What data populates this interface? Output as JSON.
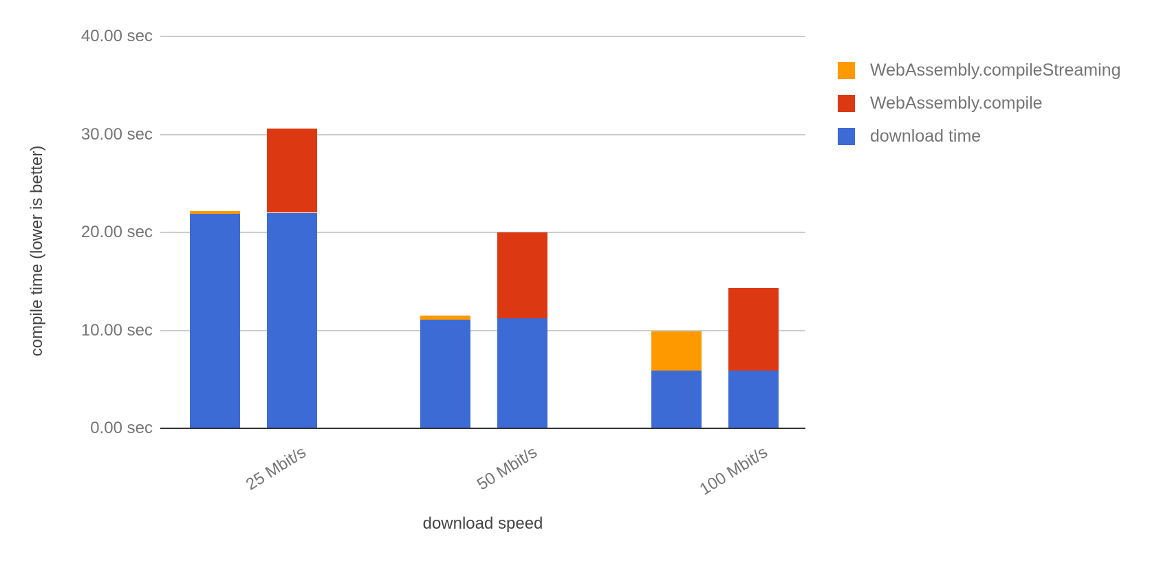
{
  "chart_data": {
    "type": "bar",
    "stacked": true,
    "title": "",
    "xlabel": "download speed",
    "ylabel": "compile time (lower is better)",
    "categories": [
      "25 Mbit/s",
      "50 Mbit/s",
      "100 Mbit/s"
    ],
    "ylim": [
      0,
      40
    ],
    "y_unit": "sec",
    "grid": true,
    "legend_position": "right",
    "y_ticks": [
      {
        "value": 0,
        "label": "0.00 sec"
      },
      {
        "value": 10,
        "label": "10.00 sec"
      },
      {
        "value": 20,
        "label": "20.00 sec"
      },
      {
        "value": 30,
        "label": "30.00 sec"
      },
      {
        "value": 40,
        "label": "40.00 sec"
      }
    ],
    "legend": [
      {
        "label": "WebAssembly.compileStreaming",
        "color": "#FF9900"
      },
      {
        "label": "WebAssembly.compile",
        "color": "#DC3912"
      },
      {
        "label": "download time",
        "color": "#3C6BD6"
      }
    ],
    "bar_groups": [
      {
        "name": "compileStreaming-bar",
        "segments": [
          {
            "series": "download time",
            "color": "#3C6BD6",
            "values": [
              21.9,
              11.1,
              5.9
            ]
          },
          {
            "series": "WebAssembly.compileStreaming",
            "color": "#FF9900",
            "values": [
              0.3,
              0.4,
              4.0
            ]
          }
        ],
        "totals": [
          22.2,
          11.5,
          9.9
        ]
      },
      {
        "name": "compile-bar",
        "segments": [
          {
            "series": "download time",
            "color": "#3C6BD6",
            "values": [
              22.0,
              11.2,
              5.9
            ]
          },
          {
            "series": "WebAssembly.compile",
            "color": "#DC3912",
            "values": [
              8.6,
              8.8,
              8.4
            ]
          }
        ],
        "totals": [
          30.6,
          20.0,
          14.3
        ]
      }
    ]
  }
}
